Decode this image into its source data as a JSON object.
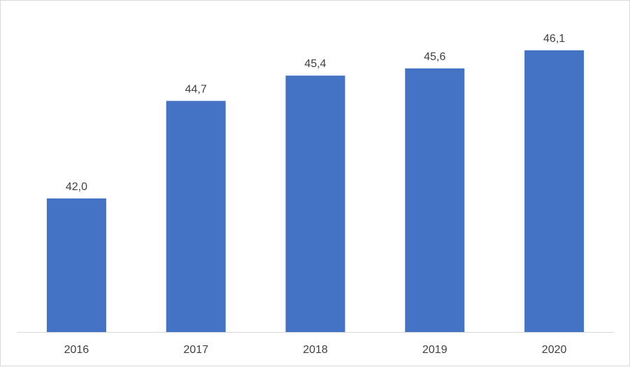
{
  "chart_data": {
    "type": "bar",
    "categories": [
      "2016",
      "2017",
      "2018",
      "2019",
      "2020"
    ],
    "values": [
      42.0,
      44.7,
      45.4,
      45.6,
      46.1
    ],
    "value_labels": [
      "42,0",
      "44,7",
      "45,4",
      "45,6",
      "46,1"
    ],
    "title": "",
    "xlabel": "",
    "ylabel": "",
    "ylim": [
      38.3,
      46.1
    ],
    "grid": false,
    "legend": "none",
    "bar_color": "#4472c4",
    "label_color": "#404040",
    "axis_color": "#d9d9d9"
  }
}
